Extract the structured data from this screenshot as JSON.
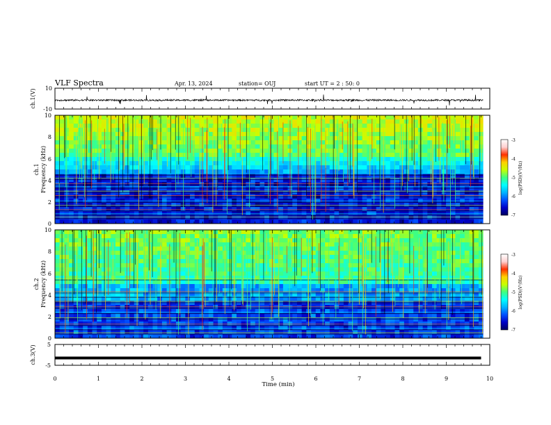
{
  "header": {
    "title": "VLF Spectra",
    "date": "Apr. 13, 2024",
    "station": "station= OUJ",
    "start": "start UT =  2 : 50: 0"
  },
  "colors": {
    "colormap": [
      "#000060",
      "#0000c8",
      "#0050ff",
      "#00b4ff",
      "#00ffff",
      "#40ff80",
      "#c8ff00",
      "#ffd000",
      "#ff3000",
      "#ffd0d0",
      "#ffffff"
    ]
  },
  "chart_data": [
    {
      "type": "line",
      "id": "ch1-waveform",
      "ylabel": "ch.1(V)",
      "ylim": [
        -10,
        10
      ],
      "yticks": [
        "10",
        "-10"
      ],
      "xlim": [
        0,
        10
      ],
      "baseline": -1.5
    },
    {
      "type": "heatmap",
      "id": "ch1-spectrogram",
      "ylabel": "ch.1\nFrequency (kHz)",
      "ylim": [
        0,
        10
      ],
      "yticks": [
        "0",
        "2",
        "4",
        "6",
        "8",
        "10"
      ],
      "xlim": [
        0,
        10
      ],
      "data_end_min": 9.85,
      "colorbar": {
        "label": "log(PSD)(V²/Hz)",
        "range": [
          -7,
          -3
        ],
        "ticks": [
          "-3",
          "-4",
          "-5",
          "-6",
          "-7"
        ]
      }
    },
    {
      "type": "heatmap",
      "id": "ch2-spectrogram",
      "ylabel": "ch.2\nFrequency (kHz)",
      "ylim": [
        0,
        10
      ],
      "yticks": [
        "0",
        "2",
        "4",
        "6",
        "8",
        "10"
      ],
      "xlim": [
        0,
        10
      ],
      "data_end_min": 9.85,
      "colorbar": {
        "label": "log(PSD)(V²/Hz)",
        "range": [
          -7,
          -3
        ],
        "ticks": [
          "-3",
          "-4",
          "-5",
          "-6",
          "-7"
        ]
      }
    },
    {
      "type": "line",
      "id": "ch3-waveform",
      "ylabel": "ch.3(V)",
      "ylim": [
        -5,
        5
      ],
      "yticks": [
        "5",
        "0",
        "-5"
      ],
      "xlim": [
        0,
        10
      ],
      "value": -1.5
    }
  ],
  "xaxis": {
    "label": "Time (min)",
    "ticks": [
      "0",
      "1",
      "2",
      "3",
      "4",
      "5",
      "6",
      "7",
      "8",
      "9",
      "10"
    ]
  }
}
